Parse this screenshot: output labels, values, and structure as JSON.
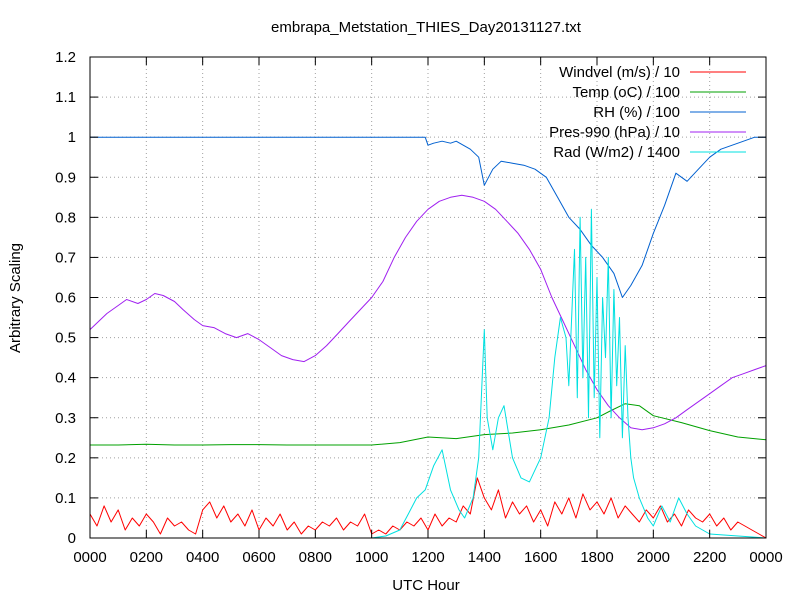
{
  "chart_data": {
    "type": "line",
    "title": "embrapa_Metstation_THIES_Day20131127.txt",
    "xlabel": "UTC Hour",
    "ylabel": "Arbitrary Scaling",
    "xlim": [
      0,
      24
    ],
    "ylim": [
      0,
      1.2
    ],
    "grid": true,
    "legend_position": "top-right",
    "x_tick_labels": [
      "0000",
      "0200",
      "0400",
      "0600",
      "0800",
      "1000",
      "1200",
      "1400",
      "1600",
      "1800",
      "2000",
      "2200",
      "0000"
    ],
    "y_tick_labels": [
      "0",
      "0.1",
      "0.2",
      "0.3",
      "0.4",
      "0.5",
      "0.6",
      "0.7",
      "0.8",
      "0.9",
      "1",
      "1.1",
      "1.2"
    ],
    "series": [
      {
        "name": "Windvel (m/s) / 10",
        "color": "#ff0000",
        "x": [
          0.0,
          0.25,
          0.5,
          0.75,
          1.0,
          1.25,
          1.5,
          1.75,
          2.0,
          2.25,
          2.5,
          2.75,
          3.0,
          3.25,
          3.5,
          3.75,
          4.0,
          4.25,
          4.5,
          4.75,
          5.0,
          5.25,
          5.5,
          5.75,
          6.0,
          6.25,
          6.5,
          6.75,
          7.0,
          7.25,
          7.5,
          7.75,
          8.0,
          8.25,
          8.5,
          8.75,
          9.0,
          9.25,
          9.5,
          9.75,
          10.0,
          10.25,
          10.5,
          10.75,
          11.0,
          11.25,
          11.5,
          11.75,
          12.0,
          12.25,
          12.5,
          12.75,
          13.0,
          13.25,
          13.5,
          13.75,
          14.0,
          14.25,
          14.5,
          14.75,
          15.0,
          15.25,
          15.5,
          15.75,
          16.0,
          16.25,
          16.5,
          16.75,
          17.0,
          17.25,
          17.5,
          17.75,
          18.0,
          18.25,
          18.5,
          18.75,
          19.0,
          19.25,
          19.5,
          19.75,
          20.0,
          20.25,
          20.5,
          20.75,
          21.0,
          21.25,
          21.5,
          21.75,
          22.0,
          22.25,
          22.5,
          22.75,
          23.0,
          23.25,
          23.5,
          23.75,
          24.0
        ],
        "values": [
          0.06,
          0.03,
          0.08,
          0.04,
          0.07,
          0.02,
          0.05,
          0.03,
          0.06,
          0.04,
          0.01,
          0.05,
          0.03,
          0.04,
          0.02,
          0.01,
          0.07,
          0.09,
          0.05,
          0.08,
          0.04,
          0.06,
          0.03,
          0.07,
          0.02,
          0.05,
          0.03,
          0.06,
          0.02,
          0.04,
          0.01,
          0.03,
          0.02,
          0.04,
          0.03,
          0.05,
          0.02,
          0.04,
          0.03,
          0.06,
          0.01,
          0.02,
          0.01,
          0.03,
          0.02,
          0.04,
          0.03,
          0.05,
          0.02,
          0.06,
          0.03,
          0.05,
          0.04,
          0.08,
          0.06,
          0.15,
          0.1,
          0.07,
          0.12,
          0.05,
          0.09,
          0.06,
          0.08,
          0.04,
          0.07,
          0.03,
          0.09,
          0.06,
          0.1,
          0.05,
          0.11,
          0.07,
          0.09,
          0.06,
          0.1,
          0.05,
          0.08,
          0.06,
          0.04,
          0.07,
          0.05,
          0.08,
          0.04,
          0.06,
          0.03,
          0.07,
          0.05,
          0.04,
          0.06,
          0.03,
          0.05,
          0.02,
          0.04,
          0.03,
          0.02,
          0.01,
          0.0
        ]
      },
      {
        "name": "Temp (oC) / 100",
        "color": "#00a000",
        "x": [
          0,
          1,
          2,
          3,
          4,
          5,
          6,
          7,
          8,
          9,
          10,
          11,
          12,
          13,
          14,
          15,
          16,
          17,
          18,
          18.5,
          19,
          19.5,
          20,
          21,
          22,
          23,
          24
        ],
        "values": [
          0.232,
          0.232,
          0.234,
          0.232,
          0.232,
          0.233,
          0.233,
          0.232,
          0.232,
          0.232,
          0.232,
          0.238,
          0.252,
          0.248,
          0.258,
          0.262,
          0.27,
          0.282,
          0.3,
          0.318,
          0.335,
          0.33,
          0.305,
          0.288,
          0.268,
          0.252,
          0.245
        ]
      },
      {
        "name": "RH (%) / 100",
        "color": "#0060d0",
        "x": [
          0,
          2,
          4,
          6,
          8,
          10,
          11.5,
          11.9,
          12.0,
          12.2,
          12.5,
          12.8,
          13.0,
          13.5,
          13.8,
          14.0,
          14.3,
          14.6,
          15.0,
          15.4,
          15.8,
          16.2,
          16.6,
          17.0,
          17.4,
          17.8,
          18.2,
          18.6,
          18.9,
          19.2,
          19.6,
          20.0,
          20.4,
          20.8,
          21.2,
          21.6,
          22.0,
          22.4,
          22.8,
          23.2,
          23.6,
          24.0
        ],
        "values": [
          1.0,
          1.0,
          1.0,
          1.0,
          1.0,
          1.0,
          1.0,
          1.0,
          0.98,
          0.985,
          0.99,
          0.985,
          0.99,
          0.97,
          0.95,
          0.88,
          0.92,
          0.94,
          0.935,
          0.93,
          0.92,
          0.9,
          0.85,
          0.8,
          0.77,
          0.73,
          0.7,
          0.66,
          0.6,
          0.63,
          0.68,
          0.76,
          0.83,
          0.91,
          0.89,
          0.92,
          0.95,
          0.97,
          0.98,
          0.99,
          1.0,
          1.0
        ]
      },
      {
        "name": "Pres-990 (hPa) / 10",
        "color": "#a020f0",
        "x": [
          0.0,
          0.3,
          0.6,
          1.0,
          1.3,
          1.7,
          2.0,
          2.3,
          2.6,
          3.0,
          3.3,
          3.7,
          4.0,
          4.4,
          4.8,
          5.2,
          5.6,
          6.0,
          6.4,
          6.8,
          7.2,
          7.6,
          8.0,
          8.4,
          8.8,
          9.2,
          9.6,
          10.0,
          10.4,
          10.8,
          11.2,
          11.6,
          12.0,
          12.4,
          12.8,
          13.2,
          13.6,
          14.0,
          14.4,
          14.8,
          15.2,
          15.6,
          16.0,
          16.4,
          16.8,
          17.2,
          17.6,
          18.0,
          18.4,
          18.8,
          19.2,
          19.6,
          20.0,
          20.4,
          20.8,
          21.2,
          21.6,
          22.0,
          22.4,
          22.8,
          23.2,
          23.6,
          24.0
        ],
        "values": [
          0.52,
          0.54,
          0.56,
          0.58,
          0.595,
          0.585,
          0.595,
          0.61,
          0.605,
          0.59,
          0.57,
          0.545,
          0.53,
          0.525,
          0.51,
          0.5,
          0.51,
          0.495,
          0.475,
          0.455,
          0.445,
          0.44,
          0.455,
          0.48,
          0.51,
          0.54,
          0.57,
          0.6,
          0.64,
          0.7,
          0.75,
          0.79,
          0.82,
          0.84,
          0.85,
          0.855,
          0.85,
          0.84,
          0.82,
          0.79,
          0.76,
          0.72,
          0.67,
          0.6,
          0.54,
          0.48,
          0.42,
          0.37,
          0.33,
          0.3,
          0.275,
          0.27,
          0.275,
          0.285,
          0.3,
          0.32,
          0.34,
          0.36,
          0.38,
          0.4,
          0.41,
          0.42,
          0.43
        ]
      },
      {
        "name": "Rad (W/m2) / 1400",
        "color": "#00e0e0",
        "x": [
          0,
          10.0,
          10.5,
          11.0,
          11.3,
          11.6,
          11.9,
          12.2,
          12.5,
          12.8,
          13.1,
          13.3,
          13.6,
          13.8,
          13.9,
          14.0,
          14.1,
          14.3,
          14.5,
          14.7,
          15.0,
          15.3,
          15.6,
          16.0,
          16.3,
          16.5,
          16.7,
          16.9,
          17.0,
          17.2,
          17.3,
          17.4,
          17.5,
          17.6,
          17.7,
          17.8,
          17.9,
          18.0,
          18.1,
          18.2,
          18.3,
          18.4,
          18.5,
          18.6,
          18.7,
          18.8,
          18.9,
          19.0,
          19.1,
          19.2,
          19.3,
          19.5,
          19.8,
          20.0,
          20.3,
          20.6,
          20.9,
          21.2,
          21.5,
          22.0,
          24.0
        ],
        "values": [
          0,
          0,
          0.005,
          0.02,
          0.06,
          0.1,
          0.12,
          0.18,
          0.22,
          0.12,
          0.07,
          0.05,
          0.1,
          0.2,
          0.36,
          0.52,
          0.3,
          0.22,
          0.3,
          0.33,
          0.2,
          0.15,
          0.14,
          0.2,
          0.3,
          0.45,
          0.55,
          0.5,
          0.38,
          0.72,
          0.35,
          0.8,
          0.4,
          0.7,
          0.3,
          0.82,
          0.35,
          0.65,
          0.25,
          0.6,
          0.45,
          0.7,
          0.3,
          0.62,
          0.38,
          0.55,
          0.25,
          0.48,
          0.3,
          0.2,
          0.15,
          0.1,
          0.05,
          0.03,
          0.08,
          0.04,
          0.1,
          0.06,
          0.03,
          0.01,
          0.0
        ]
      }
    ]
  }
}
